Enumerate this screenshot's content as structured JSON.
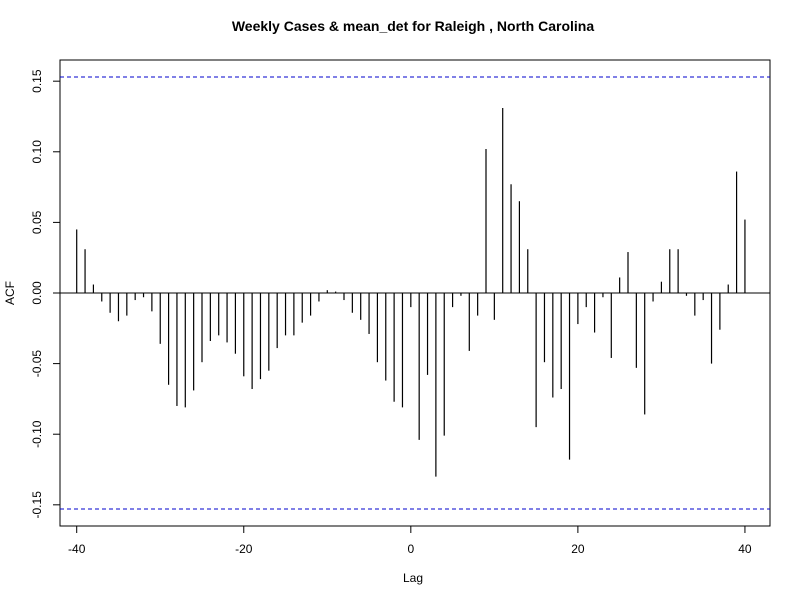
{
  "chart_data": {
    "type": "bar",
    "title": "Weekly Cases & mean_det for Raleigh , North Carolina",
    "xlabel": "Lag",
    "ylabel": "ACF",
    "xlim": [
      -42,
      43
    ],
    "ylim": [
      -0.165,
      0.165
    ],
    "x_ticks": [
      -40,
      -20,
      0,
      20,
      40
    ],
    "x_tick_labels": [
      "-40",
      "-20",
      "0",
      "20",
      "40"
    ],
    "y_ticks": [
      -0.15,
      -0.1,
      -0.05,
      0.0,
      0.05,
      0.1,
      0.15
    ],
    "y_tick_labels": [
      "-0.15",
      "-0.10",
      "-0.05",
      "0.00",
      "0.05",
      "0.10",
      "0.15"
    ],
    "confidence_bound": 0.153,
    "bound_color": "#0000cc",
    "bar_color": "#000000",
    "zero_line": true,
    "grid": false,
    "lags": [
      -40,
      -39,
      -38,
      -37,
      -36,
      -35,
      -34,
      -33,
      -32,
      -31,
      -30,
      -29,
      -28,
      -27,
      -26,
      -25,
      -24,
      -23,
      -22,
      -21,
      -20,
      -19,
      -18,
      -17,
      -16,
      -15,
      -14,
      -13,
      -12,
      -11,
      -10,
      -9,
      -8,
      -7,
      -6,
      -5,
      -4,
      -3,
      -2,
      -1,
      0,
      1,
      2,
      3,
      4,
      5,
      6,
      7,
      8,
      9,
      10,
      11,
      12,
      13,
      14,
      15,
      16,
      17,
      18,
      19,
      20,
      21,
      22,
      23,
      24,
      25,
      26,
      27,
      28,
      29,
      30,
      31,
      32,
      33,
      34,
      35,
      36,
      37,
      38,
      39,
      40
    ],
    "values": [
      0.045,
      0.031,
      0.006,
      -0.006,
      -0.014,
      -0.02,
      -0.016,
      -0.005,
      -0.003,
      -0.013,
      -0.036,
      -0.065,
      -0.08,
      -0.081,
      -0.069,
      -0.049,
      -0.034,
      -0.03,
      -0.035,
      -0.043,
      -0.059,
      -0.068,
      -0.061,
      -0.055,
      -0.039,
      -0.03,
      -0.03,
      -0.021,
      -0.016,
      -0.006,
      0.002,
      0.001,
      -0.005,
      -0.014,
      -0.019,
      -0.029,
      -0.049,
      -0.062,
      -0.077,
      -0.081,
      -0.01,
      -0.104,
      -0.058,
      -0.13,
      -0.101,
      -0.01,
      -0.002,
      -0.041,
      -0.016,
      0.102,
      -0.019,
      0.131,
      0.077,
      0.065,
      0.031,
      -0.095,
      -0.049,
      -0.074,
      -0.068,
      -0.118,
      -0.022,
      -0.01,
      -0.028,
      -0.003,
      -0.046,
      0.011,
      0.029,
      -0.053,
      -0.086,
      -0.006,
      0.008,
      0.031,
      0.031,
      -0.002,
      -0.016,
      -0.005,
      -0.05,
      -0.026,
      0.006,
      0.086,
      0.052
    ]
  }
}
